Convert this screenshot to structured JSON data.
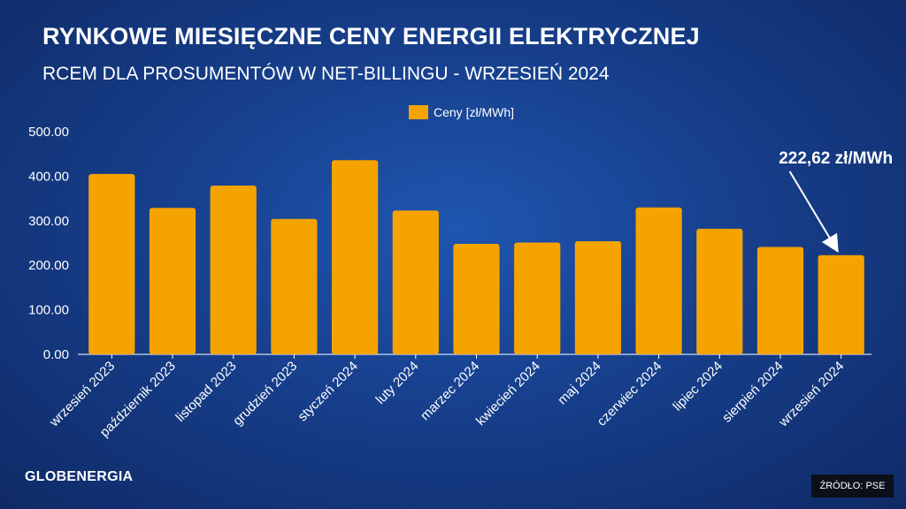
{
  "header": {
    "title": "RYNKOWE MIESIĘCZNE CENY ENERGII ELEKTRYCZNEJ",
    "subtitle": "RCEM DLA PROSUMENTÓW W NET-BILLINGU - WRZESIEŃ 2024"
  },
  "chart_data": {
    "type": "bar",
    "categories": [
      "wrzesień 2023",
      "październik 2023",
      "listopad 2023",
      "grudzień 2023",
      "styczeń 2024",
      "luty 2024",
      "marzec 2024",
      "kwiecień 2024",
      "maj 2024",
      "czerwiec 2024",
      "lipiec 2024",
      "sierpień 2024",
      "wrzesień 2024"
    ],
    "series": [
      {
        "name": "Ceny [zł/MWh]",
        "values": [
          405,
          329,
          379,
          304,
          436,
          323,
          248,
          251,
          254,
          330,
          282,
          241,
          222.62
        ]
      }
    ],
    "ylim": [
      0,
      500
    ],
    "yticks": [
      "0.00",
      "100.00",
      "200.00",
      "300.00",
      "400.00",
      "500.00"
    ],
    "grid": false,
    "legend": "top-center",
    "bar_color": "#f5a300",
    "annotation": {
      "text": "222,62 zł/MWh",
      "target_category": "wrzesień 2024"
    }
  },
  "footer": {
    "brand": "GLOBENERGIA",
    "source": "ŹRÓDŁO: PSE"
  },
  "colors": {
    "bar": "#f5a300",
    "axis": "#ffffff"
  }
}
